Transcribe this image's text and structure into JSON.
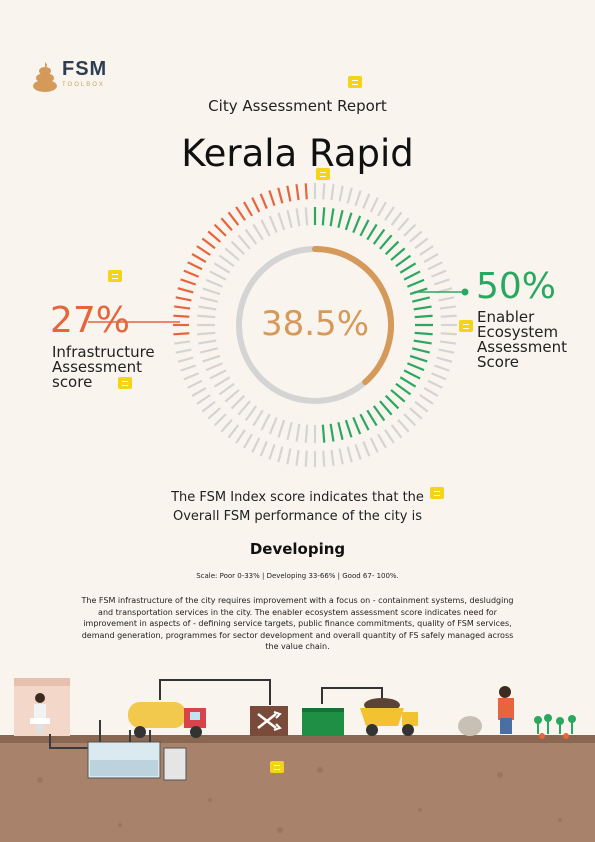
{
  "logo": {
    "name": "FSM",
    "subtitle": "TOOLBOX"
  },
  "report": {
    "subtitle": "City Assessment Report",
    "city": "Kerala Rapid"
  },
  "scores": {
    "overall": "38.5%",
    "infrastructure_pct": "27%",
    "infrastructure_label": [
      "Infrastructure",
      "Assessment",
      "score"
    ],
    "enabler_pct": "50%",
    "enabler_label": [
      "Enabler",
      "Ecosystem",
      "Assessment",
      "Score"
    ]
  },
  "gauge": {
    "infrastructure": 0.27,
    "enabler": 0.5,
    "overall": 0.385
  },
  "summary": {
    "line1": "The FSM Index score indicates that the",
    "line2": "Overall FSM performance of the city is",
    "status": "Developing",
    "scale": "Scale: Poor 0-33% | Developing 33-66% | Good 67- 100%.",
    "paragraph": "The FSM infrastructure of the city requires improvement with a focus on - containment systems, desludging and transportation services in the city. The enabler ecosystem assessment score indicates need for improvement in aspects of - defining service targets, public finance commitments, quality of FSM services, demand generation, programmes for sector development and overall quantity of FS safely managed across the value chain."
  },
  "colors": {
    "infrastructure": "#e8643c",
    "enabler": "#2aa860",
    "overall": "#d59a5a",
    "inactive": "#d4d4d4",
    "soil": "#a8826a",
    "note": "#f5d31b"
  },
  "icons": [
    "poop-logo-icon",
    "note-icon",
    "toilet-icon",
    "tanker-truck-icon",
    "shuffle-icon",
    "dumpster-icon",
    "dump-truck-icon",
    "farmer-icon",
    "plants-icon"
  ]
}
